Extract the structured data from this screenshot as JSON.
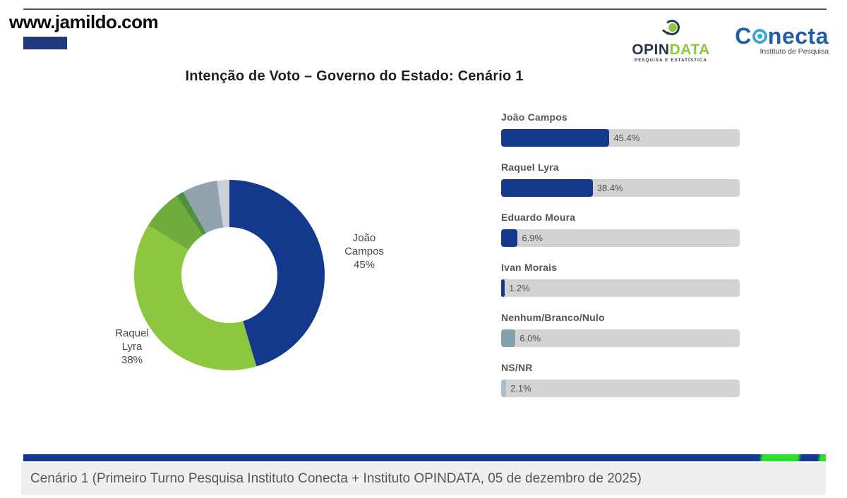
{
  "header": {
    "site_url": "www.jamildo.com"
  },
  "logos": {
    "opindata": {
      "name_part1": "OPIN",
      "name_part2": "DATA",
      "tagline": "PESQUISA E ESTATÍSTICA"
    },
    "conecta": {
      "name_c": "C",
      "name_rest": "necta",
      "subtitle": "Instituto de Pesquisa"
    }
  },
  "title": "Intenção de Voto – Governo do Estado: Cenário 1",
  "chart_data": [
    {
      "type": "pie",
      "subtype": "donut",
      "start_angle_deg": 0,
      "direction": "clockwise",
      "labels": [
        "João Campos",
        "Raquel Lyra",
        "Eduardo Moura",
        "Ivan Morais",
        "Nenhum/Branco/Nulo",
        "NS/NR"
      ],
      "values": [
        45.4,
        38.4,
        6.9,
        1.2,
        6.0,
        2.1
      ],
      "colors": [
        "#14388c",
        "#8dc63f",
        "#70ab3e",
        "#50913f",
        "#92a3b0",
        "#c9d0d6"
      ],
      "callouts": [
        {
          "lines": [
            "João",
            "Campos",
            "45%"
          ],
          "position": "right"
        },
        {
          "lines": [
            "Raquel",
            "Lyra",
            "38%"
          ],
          "position": "left"
        }
      ]
    },
    {
      "type": "bar",
      "orientation": "horizontal",
      "categories": [
        "João Campos",
        "Raquel Lyra",
        "Eduardo Moura",
        "Ivan Morais",
        "Nenhum/Branco/Nulo",
        "NS/NR"
      ],
      "values": [
        45.4,
        38.4,
        6.9,
        1.2,
        6.0,
        2.1
      ],
      "value_labels": [
        "45.4%",
        "38.4%",
        "6.9%",
        "1.2%",
        "6.0%",
        "2.1%"
      ],
      "bar_colors": [
        "#14388c",
        "#14388c",
        "#14388c",
        "#14388c",
        "#87a0ae",
        "#a9c0cc"
      ],
      "track_color": "#d3d3d3",
      "xlim": [
        0,
        100
      ],
      "grid": false,
      "legend": "none"
    }
  ],
  "footer": {
    "caption": "Cenário 1 (Primeiro Turno Pesquisa Instituto Conecta + Instituto OPINDATA, 05 de dezembro de 2025)"
  },
  "colors": {
    "accent_blue": "#14388c",
    "accent_green_bright": "#2ee02e",
    "brand_green": "#8dc63f",
    "chip_blue": "#21397f",
    "track_gray": "#d3d3d3"
  }
}
